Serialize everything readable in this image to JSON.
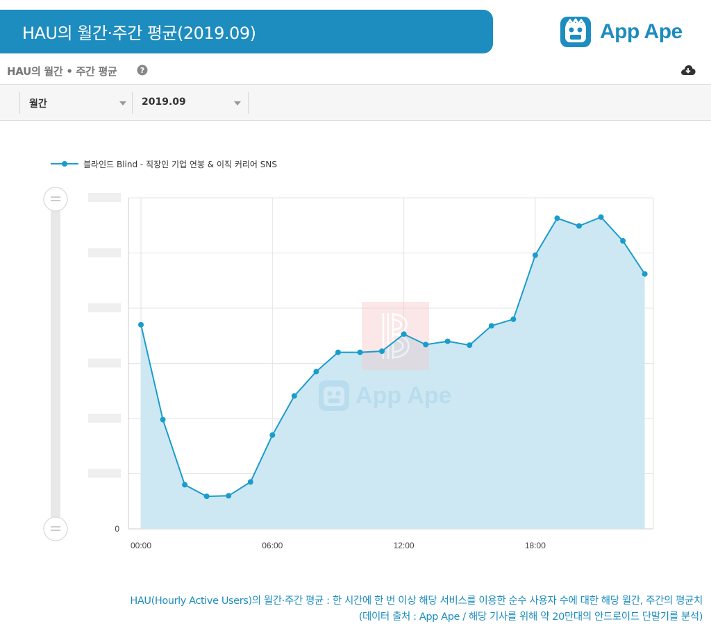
{
  "banner": {
    "title": "HAU의 월간·주간 평균(2019.09)"
  },
  "brand": {
    "name": "App Ape",
    "watermark": "App Ape",
    "color": "#1d8cbf"
  },
  "panel": {
    "title": "HAU의 월간 • 주간 평균"
  },
  "filters": {
    "period": "월간",
    "month": "2019.09"
  },
  "footnote": {
    "line1": "HAU(Hourly Active Users)의 월간·주간 평균 : 한 시간에 한 번 이상 해당 서비스를 이용한 순수 사용자 수에 대한 해당 월간, 주간의 평균치",
    "line2": "(데이터 출처 : App Ape / 해당 기사를 위해 약 20만대의 안드로이드 단말기를 분석)"
  },
  "colors": {
    "line": "#1a9ccc",
    "area": "#cde8f3",
    "accent": "#1d8cbf"
  },
  "chart_data": {
    "type": "area",
    "x": [
      0,
      1,
      2,
      3,
      4,
      5,
      6,
      7,
      8,
      9,
      10,
      11,
      12,
      13,
      14,
      15,
      16,
      17,
      18,
      19,
      20,
      21,
      22,
      23
    ],
    "x_ticks": [
      {
        "x": 0,
        "label": "00:00"
      },
      {
        "x": 6,
        "label": "06:00"
      },
      {
        "x": 12,
        "label": "12:00"
      },
      {
        "x": 18,
        "label": "18:00"
      }
    ],
    "y_ticks": [
      {
        "value": 0,
        "label": "0"
      }
    ],
    "ylim": [
      0,
      6
    ],
    "y_tick_labels_hidden": true,
    "series": [
      {
        "name": "블라인드 Blind - 직장인 기업 연봉 & 이직 커리어 SNS",
        "values": [
          3.7,
          1.98,
          0.8,
          0.59,
          0.6,
          0.85,
          1.7,
          2.41,
          2.85,
          3.2,
          3.2,
          3.22,
          3.53,
          3.34,
          3.4,
          3.33,
          3.68,
          3.8,
          4.96,
          5.63,
          5.49,
          5.65,
          5.22,
          4.62
        ]
      }
    ],
    "legend": "top-left",
    "grid": true
  }
}
